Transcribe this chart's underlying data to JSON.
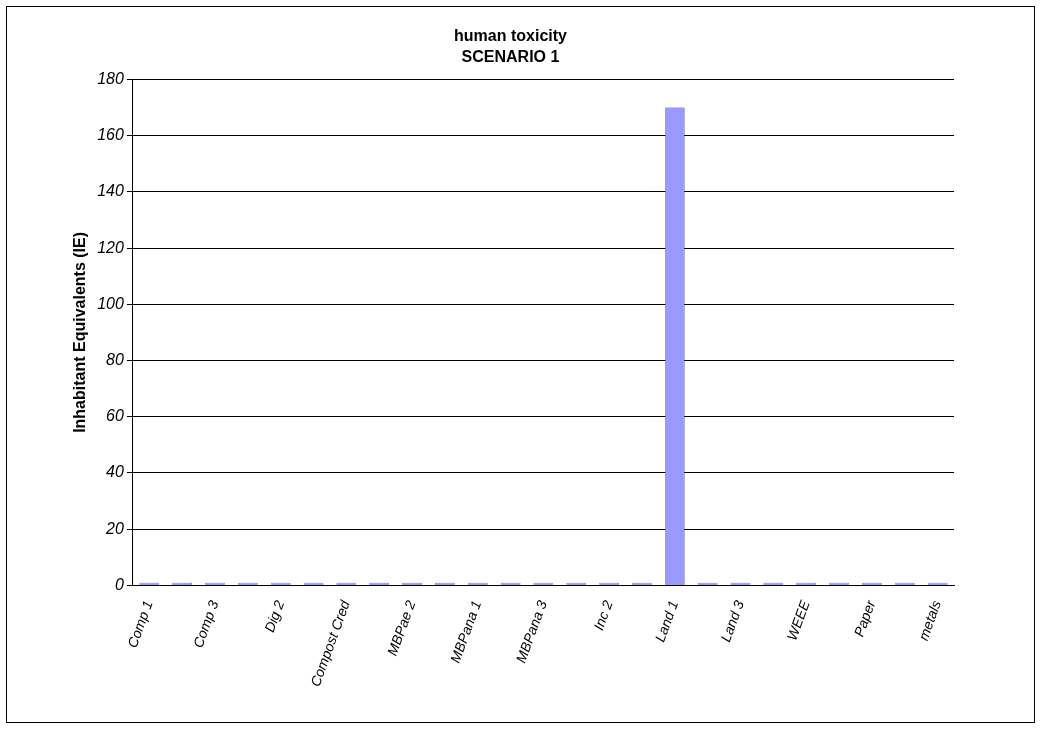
{
  "chart_data": {
    "type": "bar",
    "title": "human toxicity",
    "subtitle": "SCENARIO 1",
    "ylabel": "Inhabitant Equivalents (IE)",
    "categories": [
      "Comp 1",
      null,
      "Comp 3",
      null,
      "Dig 2",
      null,
      "Compost Cred",
      null,
      "MBPae 2",
      null,
      "MBPana 1",
      null,
      "MBPana 3",
      null,
      "Inc 2",
      null,
      "Land 1",
      null,
      "Land 3",
      null,
      "WEEE",
      null,
      "Paper",
      null,
      "metals"
    ],
    "values": [
      1,
      1,
      1,
      1,
      1,
      1,
      1,
      1,
      1,
      1,
      1,
      1,
      1,
      1,
      1,
      1,
      170,
      1,
      1,
      1,
      1,
      1,
      1,
      1,
      1
    ],
    "color": "#9999ff",
    "ylim": [
      0,
      180
    ],
    "yticks": [
      0,
      20,
      40,
      60,
      80,
      100,
      120,
      140,
      160,
      180
    ],
    "grid": "y",
    "legend": false
  }
}
